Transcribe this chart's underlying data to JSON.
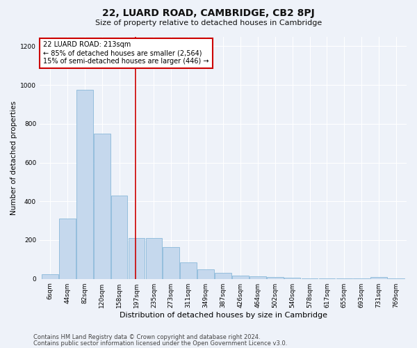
{
  "title": "22, LUARD ROAD, CAMBRIDGE, CB2 8PJ",
  "subtitle": "Size of property relative to detached houses in Cambridge",
  "xlabel": "Distribution of detached houses by size in Cambridge",
  "ylabel": "Number of detached properties",
  "categories": [
    "6sqm",
    "44sqm",
    "82sqm",
    "120sqm",
    "158sqm",
    "197sqm",
    "235sqm",
    "273sqm",
    "311sqm",
    "349sqm",
    "387sqm",
    "426sqm",
    "464sqm",
    "502sqm",
    "540sqm",
    "578sqm",
    "617sqm",
    "655sqm",
    "693sqm",
    "731sqm",
    "769sqm"
  ],
  "values": [
    25,
    310,
    975,
    750,
    430,
    210,
    210,
    165,
    85,
    50,
    32,
    18,
    14,
    8,
    5,
    3,
    2,
    2,
    1,
    8,
    1
  ],
  "bar_color": "#c5d8ed",
  "bar_edge_color": "#7ab0d4",
  "background_color": "#eef2f9",
  "grid_color": "#ffffff",
  "annotation_title": "22 LUARD ROAD: 213sqm",
  "annotation_line1": "← 85% of detached houses are smaller (2,564)",
  "annotation_line2": "15% of semi-detached houses are larger (446) →",
  "annotation_box_color": "#ffffff",
  "annotation_border_color": "#cc0000",
  "vline_color": "#cc0000",
  "footer1": "Contains HM Land Registry data © Crown copyright and database right 2024.",
  "footer2": "Contains public sector information licensed under the Open Government Licence v3.0.",
  "ylim": [
    0,
    1250
  ],
  "yticks": [
    0,
    200,
    400,
    600,
    800,
    1000,
    1200
  ],
  "vline_index": 4.92,
  "title_fontsize": 10,
  "subtitle_fontsize": 8,
  "xlabel_fontsize": 8,
  "ylabel_fontsize": 7.5,
  "tick_fontsize": 6.5,
  "annotation_fontsize": 7,
  "footer_fontsize": 6
}
